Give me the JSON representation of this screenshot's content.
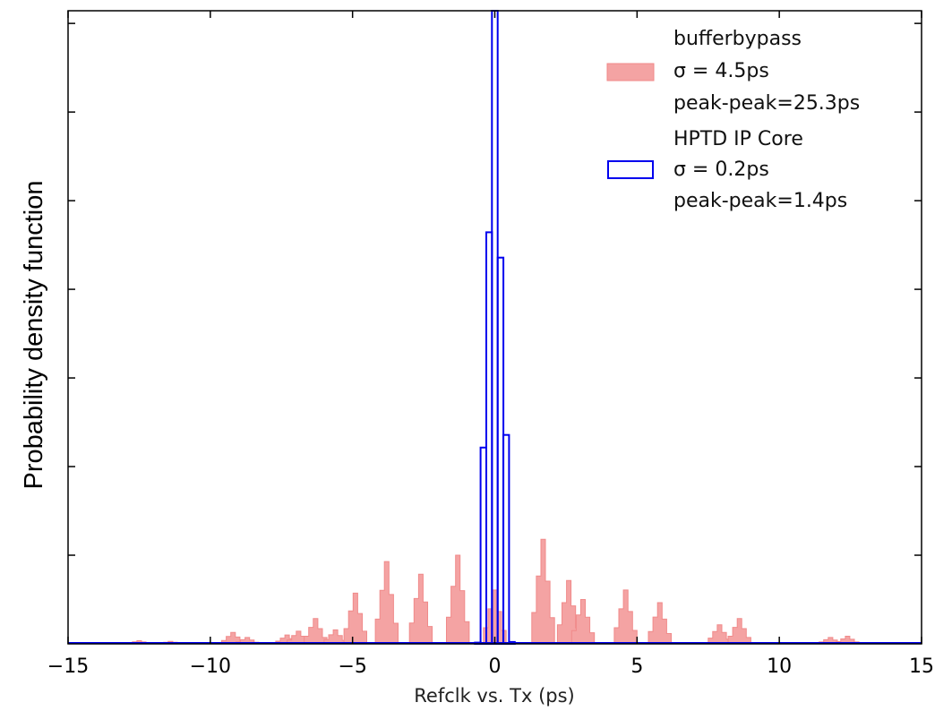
{
  "chart_data": {
    "type": "histogram",
    "xlabel": "Refclk vs. Tx (ps)",
    "ylabel": "Probability density function",
    "xlim": [
      -15,
      15
    ],
    "ylim": [
      0,
      1.0
    ],
    "x_ticks": [
      -15,
      -10,
      -5,
      0,
      5,
      10,
      15
    ],
    "x_tick_labels": [
      "−15",
      "−10",
      "−5",
      "0",
      "5",
      "10",
      "15"
    ],
    "y_ticks": [
      0.14,
      0.28,
      0.42,
      0.56,
      0.7,
      0.84,
      0.98
    ],
    "grid": false,
    "legend_position": "top-right",
    "bin_width": 0.2,
    "series": [
      {
        "name": "bufferbypass",
        "legend_lines": [
          "bufferbypass",
          "σ = 4.5ps",
          "peak-peak=25.3ps"
        ],
        "style": "filled",
        "color": "#f4a3a3",
        "edge_color": "#f08a8a",
        "peaks": [
          {
            "x": -12.5,
            "h": 0.005
          },
          {
            "x": -11.4,
            "h": 0.004
          },
          {
            "x": -9.2,
            "h": 0.018
          },
          {
            "x": -8.7,
            "h": 0.01
          },
          {
            "x": -7.3,
            "h": 0.014
          },
          {
            "x": -6.9,
            "h": 0.02
          },
          {
            "x": -6.3,
            "h": 0.04
          },
          {
            "x": -5.6,
            "h": 0.022
          },
          {
            "x": -4.9,
            "h": 0.08
          },
          {
            "x": -3.8,
            "h": 0.13
          },
          {
            "x": -2.6,
            "h": 0.11
          },
          {
            "x": -1.3,
            "h": 0.14
          },
          {
            "x": 0.0,
            "h": 0.085
          },
          {
            "x": 1.7,
            "h": 0.165
          },
          {
            "x": 2.6,
            "h": 0.1
          },
          {
            "x": 3.1,
            "h": 0.07
          },
          {
            "x": 4.6,
            "h": 0.085
          },
          {
            "x": 5.8,
            "h": 0.065
          },
          {
            "x": 7.9,
            "h": 0.03
          },
          {
            "x": 8.6,
            "h": 0.04
          },
          {
            "x": 11.8,
            "h": 0.01
          },
          {
            "x": 12.4,
            "h": 0.012
          }
        ]
      },
      {
        "name": "HPTD IP Core",
        "legend_lines": [
          "HPTD IP Core",
          "σ = 0.2ps",
          "peak-peak=1.4ps"
        ],
        "style": "step",
        "color": "#0000ee",
        "bins": [
          {
            "x": -0.6,
            "h": 0.002
          },
          {
            "x": -0.4,
            "h": 0.31
          },
          {
            "x": -0.2,
            "h": 0.65
          },
          {
            "x": 0.0,
            "h": 1.0
          },
          {
            "x": 0.2,
            "h": 0.61
          },
          {
            "x": 0.4,
            "h": 0.33
          },
          {
            "x": 0.6,
            "h": 0.003
          }
        ]
      }
    ]
  }
}
